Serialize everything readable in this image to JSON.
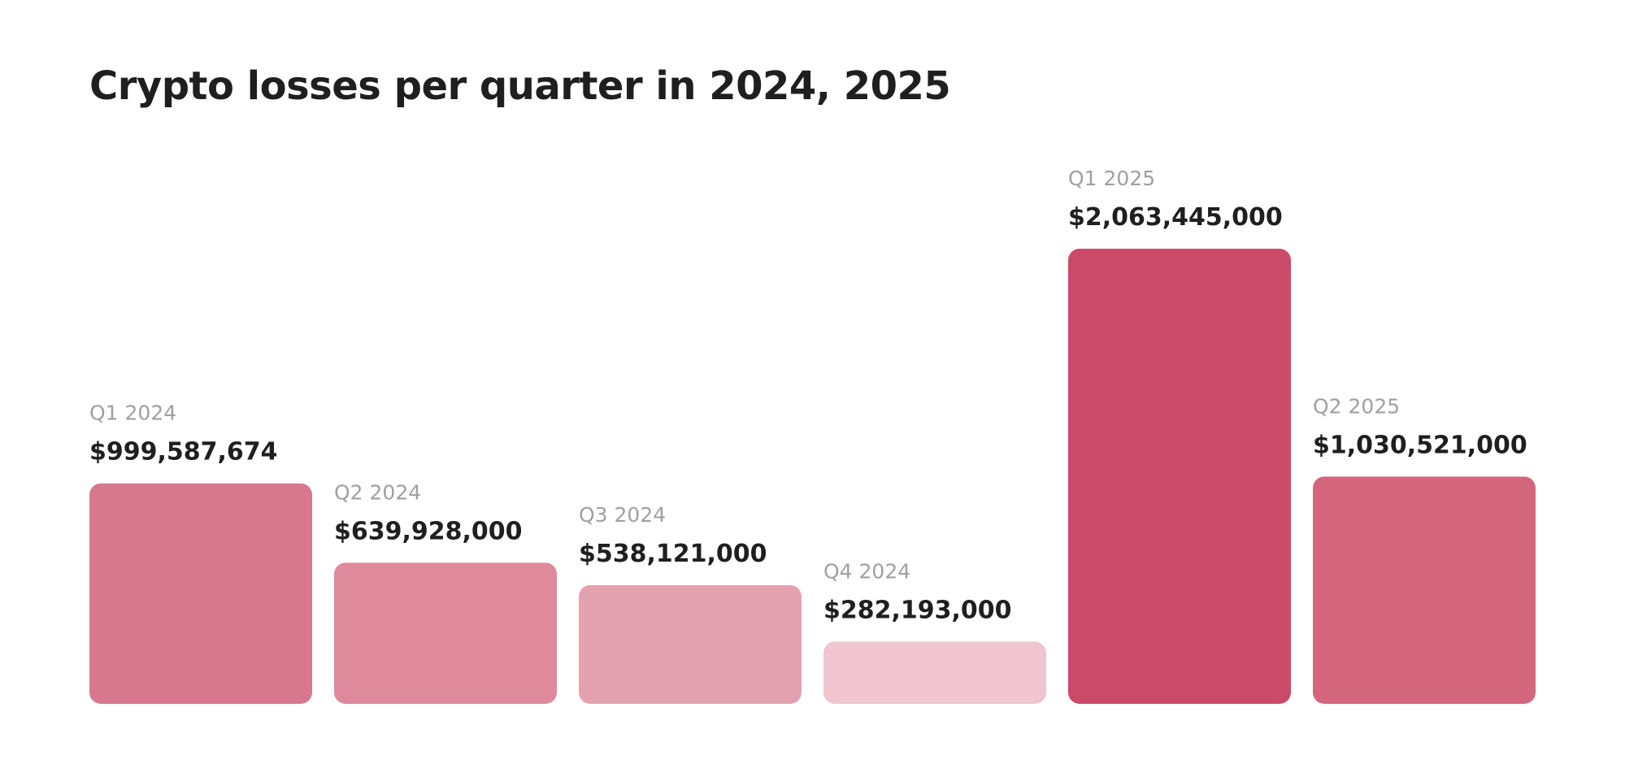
{
  "chart_data": {
    "type": "bar",
    "title": "Crypto losses per quarter in 2024, 2025",
    "xlabel": "",
    "ylabel": "",
    "ylim": [
      0,
      2063445000
    ],
    "grid": false,
    "legend": "none",
    "categories": [
      "Q1 2024",
      "Q2 2024",
      "Q3 2024",
      "Q4 2024",
      "Q1 2025",
      "Q2 2025"
    ],
    "values": [
      999587674,
      639928000,
      538121000,
      282193000,
      2063445000,
      1030521000
    ],
    "value_labels": [
      "$999,587,674",
      "$639,928,000",
      "$538,121,000",
      "$282,193,000",
      "$2,063,445,000",
      "$1,030,521,000"
    ],
    "colors": [
      "#d7788e",
      "#df899c",
      "#e4a2b0",
      "#f0c5d0",
      "#c94a69",
      "#d4667e"
    ]
  }
}
